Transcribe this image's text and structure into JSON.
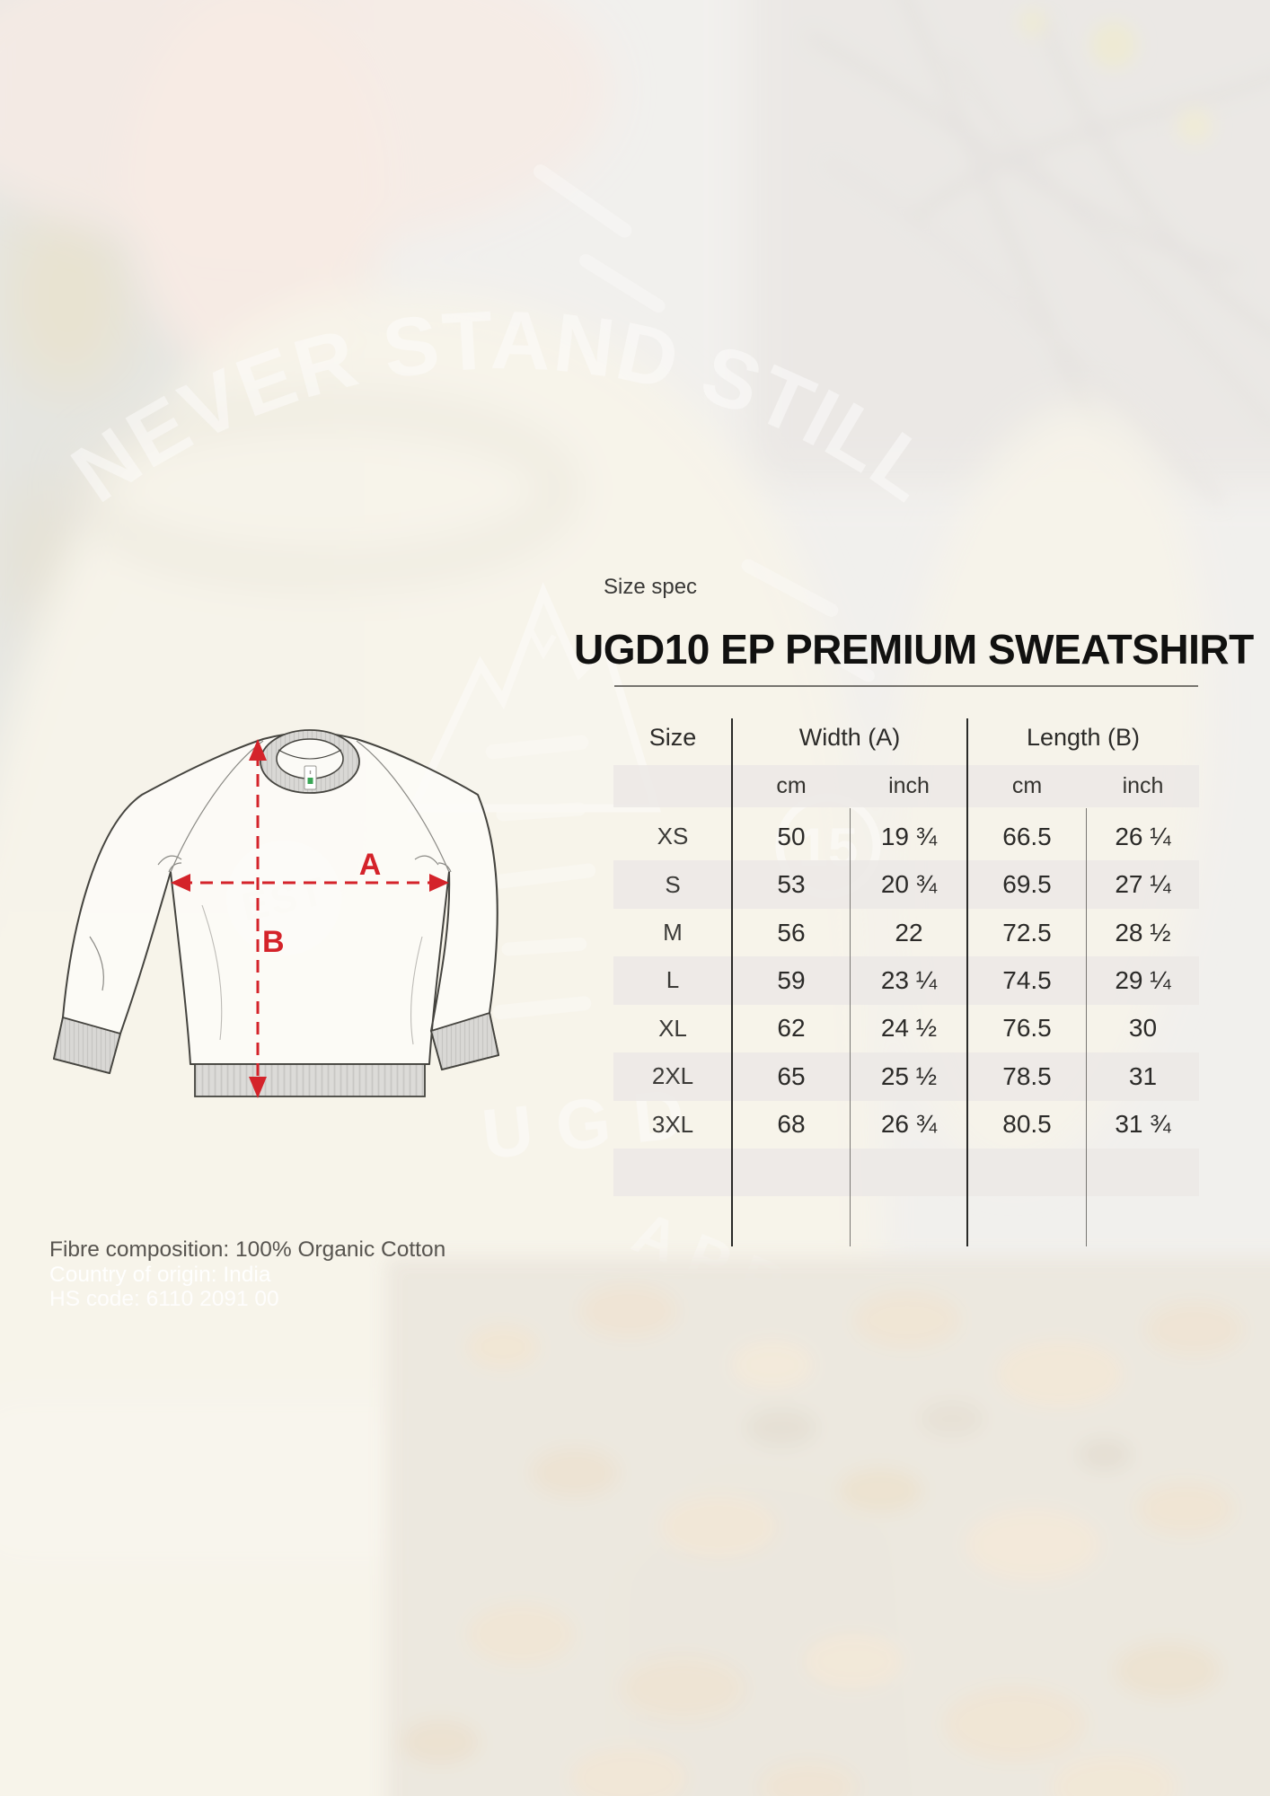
{
  "header": {
    "eyebrow": "Size spec",
    "title": "UGD10 EP PREMIUM SWEATSHIRT"
  },
  "table": {
    "columns": {
      "size": "Size",
      "width": "Width (A)",
      "length": "Length (B)"
    },
    "units": {
      "width_cm": "cm",
      "width_inch": "inch",
      "length_cm": "cm",
      "length_inch": "inch"
    },
    "rows": [
      {
        "size": "XS",
        "width_cm": "50",
        "width_inch": "19 ¾",
        "length_cm": "66.5",
        "length_inch": "26 ¼"
      },
      {
        "size": "S",
        "width_cm": "53",
        "width_inch": "20 ¾",
        "length_cm": "69.5",
        "length_inch": "27 ¼"
      },
      {
        "size": "M",
        "width_cm": "56",
        "width_inch": "22",
        "length_cm": "72.5",
        "length_inch": "28 ½"
      },
      {
        "size": "L",
        "width_cm": "59",
        "width_inch": "23 ¼",
        "length_cm": "74.5",
        "length_inch": "29 ¼"
      },
      {
        "size": "XL",
        "width_cm": "62",
        "width_inch": "24 ½",
        "length_cm": "76.5",
        "length_inch": "30"
      },
      {
        "size": "2XL",
        "width_cm": "65",
        "width_inch": "25 ½",
        "length_cm": "78.5",
        "length_inch": "31"
      },
      {
        "size": "3XL",
        "width_cm": "68",
        "width_inch": "26 ¾",
        "length_cm": "80.5",
        "length_inch": "31 ¾"
      }
    ]
  },
  "diagram": {
    "width_label": "A",
    "height_label": "B",
    "accent_color": "#d4232a"
  },
  "notes": {
    "fibre": "Fibre composition: 100% Organic Cotton",
    "origin": "Country of origin: India",
    "hs_code": "HS code: 6110 2091 00"
  },
  "background_print": {
    "arc_text": "NEVER STAND STILL",
    "badge_text": "EST",
    "badge_year": "15",
    "bottom_text_1": "UGD",
    "bottom_text_2": "APPAREL"
  }
}
